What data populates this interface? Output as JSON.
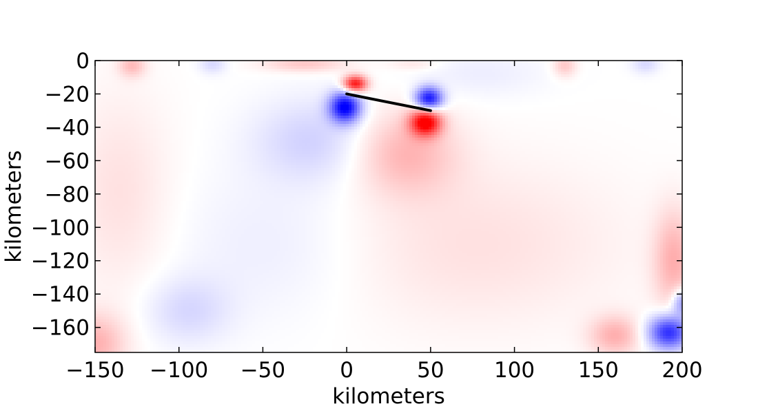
{
  "chart_data": {
    "type": "heatmap",
    "title": "",
    "xlabel": "kilometers",
    "ylabel": "kilometers",
    "xlim": [
      -150,
      200
    ],
    "ylim": [
      -175,
      0
    ],
    "x_ticks": [
      -150,
      -100,
      -50,
      0,
      50,
      100,
      150,
      200
    ],
    "x_tick_labels": [
      "−150",
      "−100",
      "−50",
      "0",
      "50",
      "100",
      "150",
      "200"
    ],
    "y_ticks": [
      0,
      -20,
      -40,
      -60,
      -80,
      -100,
      -120,
      -140,
      -160
    ],
    "y_tick_labels": [
      "0",
      "−20",
      "−40",
      "−60",
      "−80",
      "−100",
      "−120",
      "−140",
      "−160"
    ],
    "grid": false,
    "legend": "none",
    "colormap": {
      "negative": "#0000ff",
      "zero": "#ffffff",
      "positive": "#ff0000"
    },
    "fault_trace": {
      "x": [
        0,
        50
      ],
      "y": [
        -20,
        -30
      ],
      "color": "#000000"
    },
    "field_features": [
      {
        "x": 5,
        "y": -14,
        "value": 0.95,
        "sx": 7,
        "sy": 5
      },
      {
        "x": -1,
        "y": -28,
        "value": -1.0,
        "sx": 9,
        "sy": 9
      },
      {
        "x": 49,
        "y": -23,
        "value": -0.95,
        "sx": 8,
        "sy": 7
      },
      {
        "x": 47,
        "y": -37,
        "value": 1.0,
        "sx": 9,
        "sy": 8
      },
      {
        "x": 35,
        "y": -55,
        "value": 0.28,
        "sx": 30,
        "sy": 25
      },
      {
        "x": -20,
        "y": -48,
        "value": -0.18,
        "sx": 35,
        "sy": 25
      },
      {
        "x": 75,
        "y": -110,
        "value": 0.12,
        "sx": 90,
        "sy": 50
      },
      {
        "x": -40,
        "y": -110,
        "value": -0.08,
        "sx": 60,
        "sy": 45
      },
      {
        "x": -128,
        "y": -3,
        "value": 0.25,
        "sx": 8,
        "sy": 7
      },
      {
        "x": -80,
        "y": -2,
        "value": -0.15,
        "sx": 8,
        "sy": 6
      },
      {
        "x": -25,
        "y": -2,
        "value": 0.22,
        "sx": 25,
        "sy": 5
      },
      {
        "x": 80,
        "y": -8,
        "value": -0.07,
        "sx": 40,
        "sy": 15
      },
      {
        "x": 130,
        "y": -3,
        "value": 0.22,
        "sx": 7,
        "sy": 7
      },
      {
        "x": 178,
        "y": -2,
        "value": -0.15,
        "sx": 8,
        "sy": 6
      },
      {
        "x": 40,
        "y": -2,
        "value": 0.1,
        "sx": 15,
        "sy": 4
      },
      {
        "x": -135,
        "y": -80,
        "value": 0.12,
        "sx": 30,
        "sy": 60
      },
      {
        "x": -150,
        "y": -170,
        "value": 0.3,
        "sx": 18,
        "sy": 18
      },
      {
        "x": -95,
        "y": -150,
        "value": -0.15,
        "sx": 25,
        "sy": 20
      },
      {
        "x": 195,
        "y": -120,
        "value": 0.3,
        "sx": 12,
        "sy": 30
      },
      {
        "x": 160,
        "y": -165,
        "value": 0.3,
        "sx": 15,
        "sy": 12
      },
      {
        "x": 192,
        "y": -163,
        "value": -0.85,
        "sx": 12,
        "sy": 10
      },
      {
        "x": 200,
        "y": -145,
        "value": -0.45,
        "sx": 6,
        "sy": 8
      }
    ]
  }
}
